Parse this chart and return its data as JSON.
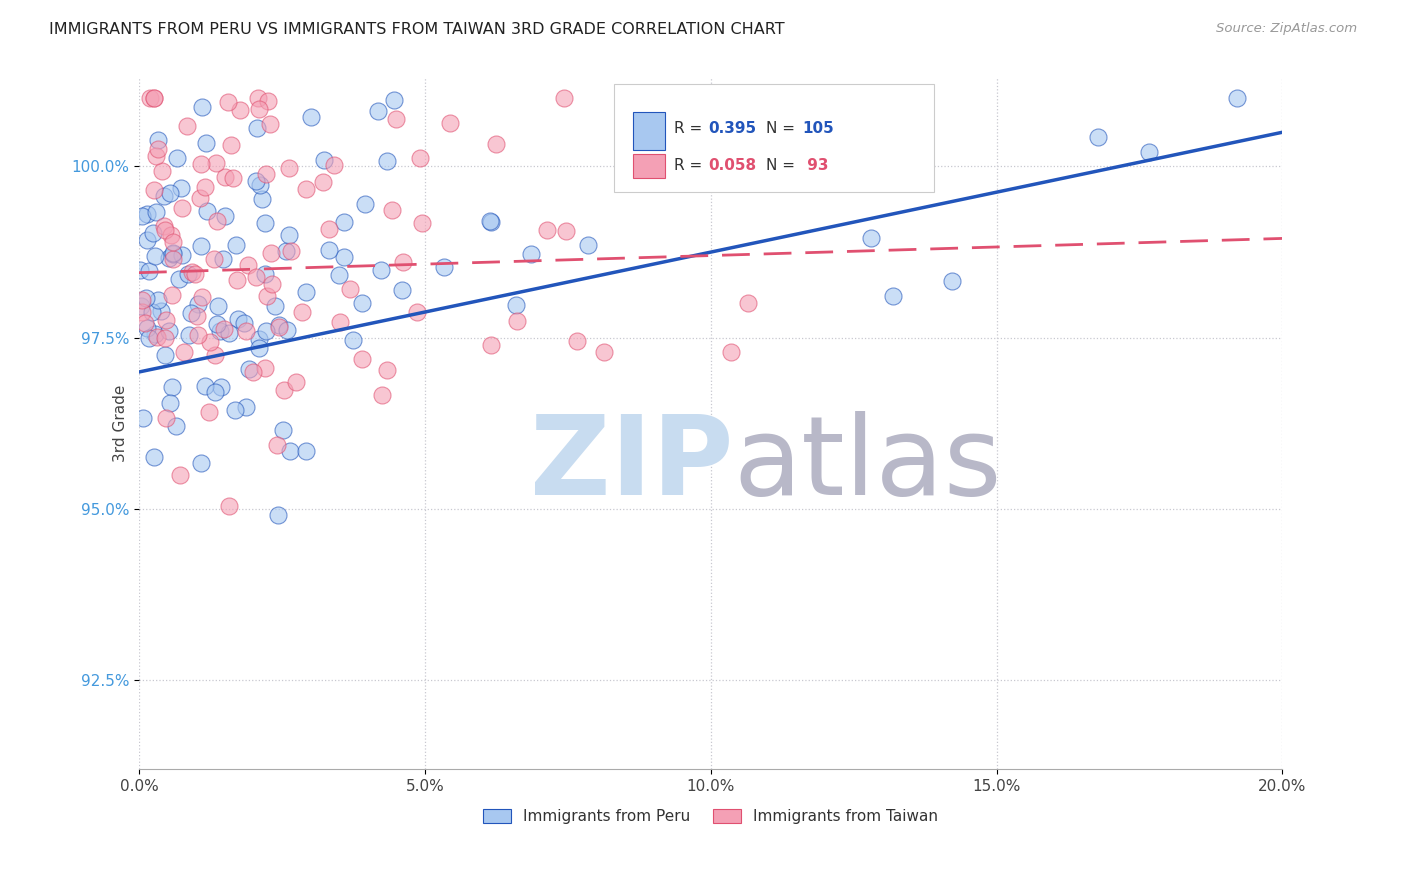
{
  "title": "IMMIGRANTS FROM PERU VS IMMIGRANTS FROM TAIWAN 3RD GRADE CORRELATION CHART",
  "source": "Source: ZipAtlas.com",
  "xlabel_ticks": [
    "0.0%",
    "5.0%",
    "10.0%",
    "15.0%",
    "20.0%"
  ],
  "xlabel_vals": [
    0.0,
    5.0,
    10.0,
    15.0,
    20.0
  ],
  "ylabel_ticks": [
    "100.0%",
    "97.5%",
    "95.0%",
    "92.5%"
  ],
  "ylabel_vals": [
    100.0,
    97.5,
    95.0,
    92.5
  ],
  "ylabel_label": "3rd Grade",
  "xlim": [
    0.0,
    20.0
  ],
  "ylim": [
    91.2,
    101.3
  ],
  "peru_R": 0.395,
  "peru_N": 105,
  "taiwan_R": 0.058,
  "taiwan_N": 93,
  "peru_color": "#A8C8F0",
  "taiwan_color": "#F4A0B5",
  "peru_line_color": "#2255BB",
  "taiwan_line_color": "#E05070",
  "background_color": "#FFFFFF",
  "watermark_zip_color": "#C8DCF0",
  "watermark_atlas_color": "#B8B8C8",
  "grid_color": "#C8C8D0",
  "right_tick_color": "#4499DD",
  "title_color": "#222222",
  "source_color": "#999999"
}
